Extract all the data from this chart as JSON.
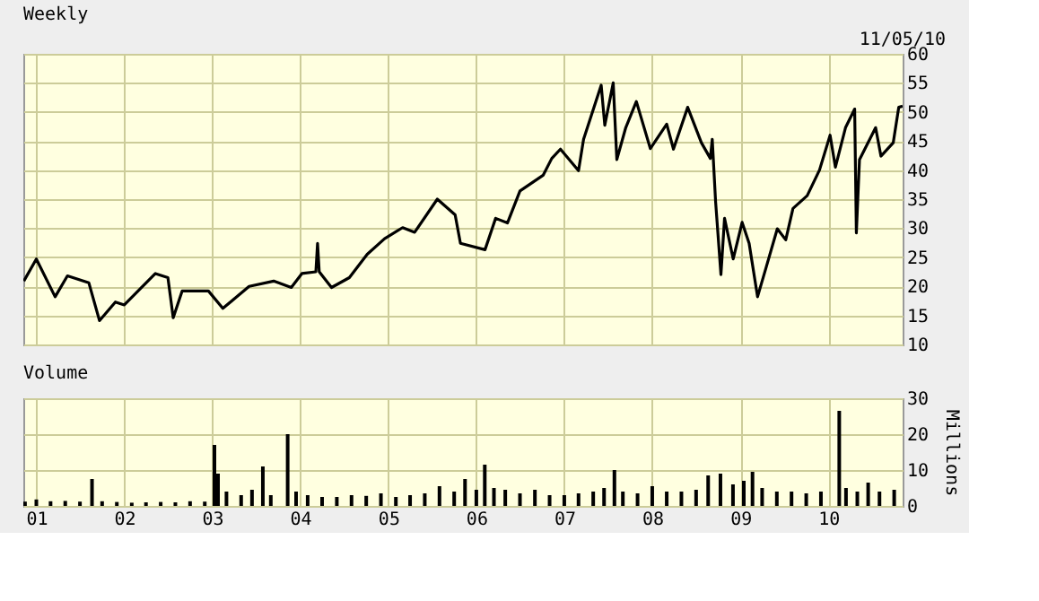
{
  "chart_data": [
    {
      "type": "line",
      "title": "Weekly",
      "annotations": [
        "11/05/10"
      ],
      "tick_labels": "y",
      "grid": true,
      "xlim": [
        "2000-11-08",
        "2010-11-05"
      ],
      "xticks": [
        {
          "value": "2001-01-01",
          "label": null
        },
        {
          "value": "2002-01-01",
          "label": null
        },
        {
          "value": "2003-01-01",
          "label": null
        },
        {
          "value": "2004-01-01",
          "label": null
        },
        {
          "value": "2005-01-01",
          "label": null
        },
        {
          "value": "2006-01-01",
          "label": null
        },
        {
          "value": "2007-01-01",
          "label": null
        },
        {
          "value": "2008-01-01",
          "label": null
        },
        {
          "value": "2009-01-01",
          "label": null
        },
        {
          "value": "2010-01-01",
          "label": null
        }
      ],
      "ylim": [
        10,
        60
      ],
      "yticks": [
        10,
        15,
        20,
        25,
        30,
        35,
        40,
        45,
        50,
        55,
        60
      ],
      "x": [
        "2000-11-10",
        "2001-01-01",
        "2001-03-20",
        "2001-05-10",
        "2001-08-07",
        "2001-09-20",
        "2001-11-25",
        "2002-01-01",
        "2002-05-10",
        "2002-07-01",
        "2002-07-23",
        "2002-08-29",
        "2002-12-16",
        "2003-02-14",
        "2003-06-03",
        "2003-09-13",
        "2003-11-25",
        "2004-01-08",
        "2004-03-06",
        "2004-03-13",
        "2004-03-20",
        "2004-05-10",
        "2004-07-23",
        "2004-10-05",
        "2004-12-16",
        "2005-03-01",
        "2005-04-20",
        "2005-07-23",
        "2005-10-05",
        "2005-10-27",
        "2006-02-06",
        "2006-03-22",
        "2006-05-10",
        "2006-07-01",
        "2006-10-05",
        "2006-11-10",
        "2006-12-16",
        "2007-03-01",
        "2007-03-22",
        "2007-06-03",
        "2007-06-18",
        "2007-07-23",
        "2007-08-07",
        "2007-09-13",
        "2007-10-27",
        "2007-12-24",
        "2008-03-01",
        "2008-03-29",
        "2008-05-27",
        "2008-07-23",
        "2008-08-29",
        "2008-09-06",
        "2008-09-20",
        "2008-10-12",
        "2008-10-27",
        "2008-12-02",
        "2009-01-08",
        "2009-02-06",
        "2009-03-13",
        "2009-04-20",
        "2009-06-03",
        "2009-07-08",
        "2009-08-07",
        "2009-10-05",
        "2009-11-25",
        "2010-01-08",
        "2010-01-30",
        "2010-03-13",
        "2010-04-20",
        "2010-04-27",
        "2010-05-10",
        "2010-07-16",
        "2010-08-07",
        "2010-09-27",
        "2010-10-20",
        "2010-11-05"
      ],
      "series": [
        {
          "color": "#000000",
          "values": [
            20.9,
            24.7,
            18.2,
            21.8,
            20.6,
            14.1,
            17.3,
            16.8,
            22.2,
            21.5,
            14.6,
            19.2,
            19.2,
            16.2,
            20.0,
            20.9,
            19.8,
            22.2,
            22.5,
            27.4,
            22.5,
            19.8,
            21.5,
            25.5,
            28.2,
            30.1,
            29.3,
            35.0,
            32.3,
            27.4,
            26.3,
            31.7,
            30.9,
            36.4,
            39.1,
            42.0,
            43.6,
            39.9,
            45.3,
            54.6,
            47.7,
            55.0,
            41.8,
            47.3,
            51.8,
            43.7,
            47.9,
            43.6,
            50.8,
            44.7,
            42.0,
            45.3,
            34.5,
            22.0,
            31.7,
            24.7,
            31.0,
            27.4,
            18.2,
            23.6,
            29.9,
            28.0,
            33.4,
            35.6,
            40.0,
            46.0,
            40.5,
            47.3,
            50.5,
            29.2,
            41.8,
            47.3,
            42.4,
            44.7,
            50.8,
            51.0
          ]
        }
      ]
    },
    {
      "type": "bar",
      "title": "Volume",
      "ylabel": "Millions",
      "grid": true,
      "xlim": [
        "2000-11-08",
        "2010-11-05"
      ],
      "xticks": [
        {
          "value": "2001-01-01",
          "label": "01"
        },
        {
          "value": "2002-01-01",
          "label": "02"
        },
        {
          "value": "2003-01-01",
          "label": "03"
        },
        {
          "value": "2004-01-01",
          "label": "04"
        },
        {
          "value": "2005-01-01",
          "label": "05"
        },
        {
          "value": "2006-01-01",
          "label": "06"
        },
        {
          "value": "2007-01-01",
          "label": "07"
        },
        {
          "value": "2008-01-01",
          "label": "08"
        },
        {
          "value": "2009-01-01",
          "label": "09"
        },
        {
          "value": "2010-01-01",
          "label": "10"
        }
      ],
      "ylim": [
        0,
        30
      ],
      "yticks": [
        0,
        10,
        20,
        30
      ],
      "x": [
        "2000-11-15",
        "2001-01-01",
        "2001-03-01",
        "2001-05-01",
        "2001-07-01",
        "2001-08-20",
        "2001-10-01",
        "2001-12-01",
        "2002-02-01",
        "2002-04-01",
        "2002-06-01",
        "2002-08-01",
        "2002-10-01",
        "2002-12-01",
        "2003-01-10",
        "2003-01-25",
        "2003-03-01",
        "2003-05-01",
        "2003-06-15",
        "2003-07-30",
        "2003-09-01",
        "2003-11-10",
        "2003-12-15",
        "2004-02-01",
        "2004-04-01",
        "2004-06-01",
        "2004-08-01",
        "2004-10-01",
        "2004-12-01",
        "2005-02-01",
        "2005-04-01",
        "2005-06-01",
        "2005-08-01",
        "2005-10-01",
        "2005-11-15",
        "2006-01-01",
        "2006-02-05",
        "2006-03-15",
        "2006-05-01",
        "2006-07-01",
        "2006-09-01",
        "2006-11-01",
        "2007-01-01",
        "2007-03-01",
        "2007-05-01",
        "2007-06-15",
        "2007-07-28",
        "2007-09-01",
        "2007-11-01",
        "2008-01-01",
        "2008-03-01",
        "2008-05-01",
        "2008-07-01",
        "2008-08-20",
        "2008-10-10",
        "2008-12-01",
        "2009-01-15",
        "2009-02-20",
        "2009-04-01",
        "2009-06-01",
        "2009-08-01",
        "2009-10-01",
        "2009-12-01",
        "2010-02-15",
        "2010-03-15",
        "2010-05-01",
        "2010-06-15",
        "2010-08-01",
        "2010-10-01"
      ],
      "series": [
        {
          "color": "#000000",
          "values": [
            1.2,
            1.8,
            1.3,
            1.4,
            1.2,
            7.5,
            1.3,
            1.1,
            0.9,
            1.0,
            1.1,
            1.0,
            1.3,
            1.2,
            17.0,
            9.0,
            4.0,
            3.0,
            4.5,
            11.0,
            3.0,
            20.0,
            4.0,
            3.0,
            2.5,
            2.5,
            3.0,
            2.8,
            3.5,
            2.5,
            3.0,
            3.5,
            5.5,
            4.0,
            7.5,
            4.5,
            11.5,
            5.0,
            4.5,
            3.5,
            4.5,
            3.0,
            3.0,
            3.5,
            4.0,
            5.0,
            10.0,
            4.0,
            3.5,
            5.5,
            4.0,
            4.0,
            4.5,
            8.5,
            9.0,
            6.0,
            7.0,
            9.5,
            5.0,
            4.0,
            4.0,
            3.5,
            4.0,
            26.5,
            5.0,
            4.0,
            6.5,
            4.0,
            4.5
          ]
        }
      ]
    }
  ]
}
